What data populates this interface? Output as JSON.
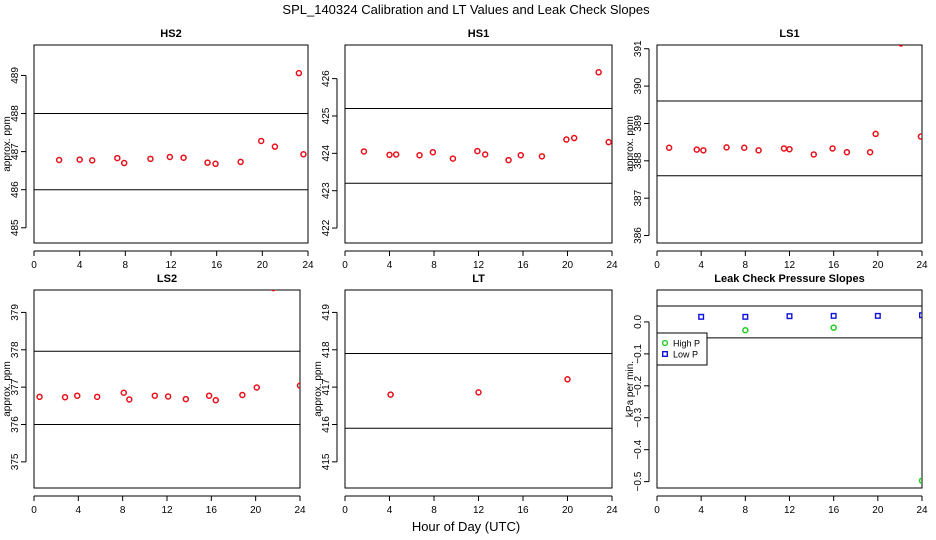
{
  "figure": {
    "title": "SPL_140324  Calibration and LT Values and Leak Check Slopes",
    "xlabel": "Hour of Day (UTC)"
  },
  "colors": {
    "red": "#e8101a",
    "green": "#22cc22",
    "blue": "#1010dd",
    "line": "#000000"
  },
  "chart_data": [
    {
      "type": "scatter",
      "title": "HS2",
      "ylabel": "approx. ppm",
      "xlim": [
        0,
        24
      ],
      "ylim": [
        484.6,
        489.8
      ],
      "xticks": [
        0,
        4,
        8,
        12,
        16,
        20,
        24
      ],
      "yticks": [
        485,
        486,
        487,
        488,
        489
      ],
      "hlines": [
        486,
        488
      ],
      "series": [
        {
          "name": "HS2",
          "color": "red",
          "marker": "circle",
          "x": [
            2.2,
            4.0,
            5.1,
            7.3,
            7.9,
            10.2,
            11.9,
            13.1,
            15.2,
            15.9,
            18.1,
            19.9,
            21.1,
            23.2,
            23.6
          ],
          "y": [
            486.78,
            486.79,
            486.77,
            486.83,
            486.7,
            486.81,
            486.86,
            486.84,
            486.71,
            486.68,
            486.73,
            487.28,
            487.13,
            489.06,
            486.93
          ]
        }
      ]
    },
    {
      "type": "scatter",
      "title": "HS1",
      "ylabel": "",
      "xlim": [
        0,
        24
      ],
      "ylim": [
        421.6,
        426.9
      ],
      "xticks": [
        0,
        4,
        8,
        12,
        16,
        20,
        24
      ],
      "yticks": [
        422,
        423,
        424,
        425,
        426
      ],
      "hlines": [
        423.2,
        425.2
      ],
      "series": [
        {
          "name": "HS1",
          "color": "red",
          "marker": "circle",
          "x": [
            1.7,
            4.0,
            4.6,
            6.7,
            7.9,
            9.7,
            11.9,
            12.6,
            14.7,
            15.8,
            17.7,
            19.9,
            20.6,
            22.8,
            23.7
          ],
          "y": [
            424.05,
            423.96,
            423.97,
            423.95,
            424.03,
            423.86,
            424.06,
            423.97,
            423.82,
            423.95,
            423.92,
            424.37,
            424.41,
            426.17,
            424.3
          ]
        }
      ]
    },
    {
      "type": "scatter",
      "title": "LS1",
      "ylabel": "approx. ppm",
      "xlim": [
        0,
        24
      ],
      "ylim": [
        385.8,
        391.1
      ],
      "xticks": [
        0,
        4,
        8,
        12,
        16,
        20,
        24
      ],
      "yticks": [
        386,
        387,
        388,
        389,
        390,
        391
      ],
      "hlines": [
        387.6,
        389.6
      ],
      "series": [
        {
          "name": "LS1",
          "color": "red",
          "marker": "circle",
          "x": [
            1.1,
            3.6,
            4.2,
            6.3,
            7.9,
            9.2,
            11.5,
            12.0,
            14.2,
            15.9,
            17.2,
            19.3,
            19.8,
            22.1,
            23.9
          ],
          "y": [
            388.35,
            388.3,
            388.28,
            388.36,
            388.35,
            388.28,
            388.33,
            388.31,
            388.17,
            388.33,
            388.23,
            388.23,
            388.72,
            391.14,
            388.65
          ]
        }
      ]
    },
    {
      "type": "scatter",
      "title": "LS2",
      "ylabel": "approx. ppm",
      "xlim": [
        0,
        24
      ],
      "ylim": [
        374.3,
        379.6
      ],
      "xticks": [
        0,
        4,
        8,
        12,
        16,
        20,
        24
      ],
      "yticks": [
        375,
        376,
        377,
        378,
        379
      ],
      "hlines": [
        376,
        377.96
      ],
      "series": [
        {
          "name": "LS2",
          "color": "red",
          "marker": "circle",
          "x": [
            0.5,
            2.8,
            3.9,
            5.7,
            8.1,
            8.6,
            10.9,
            12.1,
            13.7,
            15.8,
            16.4,
            18.8,
            20.1,
            21.6,
            24.0
          ],
          "y": [
            376.74,
            376.73,
            376.77,
            376.74,
            376.85,
            376.67,
            376.77,
            376.75,
            376.68,
            376.77,
            376.65,
            376.79,
            376.99,
            379.65,
            377.04
          ]
        }
      ]
    },
    {
      "type": "scatter",
      "title": "LT",
      "ylabel": "approx. ppm",
      "xlim": [
        0,
        24
      ],
      "ylim": [
        414.3,
        419.6
      ],
      "xticks": [
        0,
        4,
        8,
        12,
        16,
        20,
        24
      ],
      "yticks": [
        415,
        416,
        417,
        418,
        419
      ],
      "hlines": [
        415.9,
        417.9
      ],
      "series": [
        {
          "name": "LT",
          "color": "red",
          "marker": "circle",
          "x": [
            4.1,
            12.0,
            20.0
          ],
          "y": [
            416.8,
            416.86,
            417.21
          ]
        }
      ]
    },
    {
      "type": "scatter",
      "title": "Leak Check Pressure Slopes",
      "ylabel": "kPa per min.",
      "xlim": [
        0,
        24
      ],
      "ylim": [
        -0.52,
        0.1
      ],
      "xticks": [
        0,
        4,
        8,
        12,
        16,
        20,
        24
      ],
      "yticks": [
        0.0,
        -0.1,
        -0.2,
        -0.3,
        -0.4,
        -0.5
      ],
      "ytick_labels": [
        "0.0",
        "−0.1",
        "−0.2",
        "−0.3",
        "−0.4",
        "−0.5"
      ],
      "hlines": [
        0.05,
        -0.05
      ],
      "legend": {
        "position": "left",
        "entries": [
          {
            "label": "High P",
            "color": "green"
          },
          {
            "label": "Low P",
            "color": "blue"
          }
        ]
      },
      "series": [
        {
          "name": "High P",
          "color": "green",
          "marker": "circle",
          "x": [
            8.0,
            16.0,
            24.0
          ],
          "y": [
            -0.026,
            -0.018,
            -0.497
          ]
        },
        {
          "name": "Low P",
          "color": "blue",
          "marker": "square",
          "x": [
            4.0,
            8.0,
            12.0,
            16.0,
            20.0,
            24.0
          ],
          "y": [
            0.016,
            0.016,
            0.018,
            0.019,
            0.019,
            0.021
          ]
        }
      ]
    }
  ]
}
